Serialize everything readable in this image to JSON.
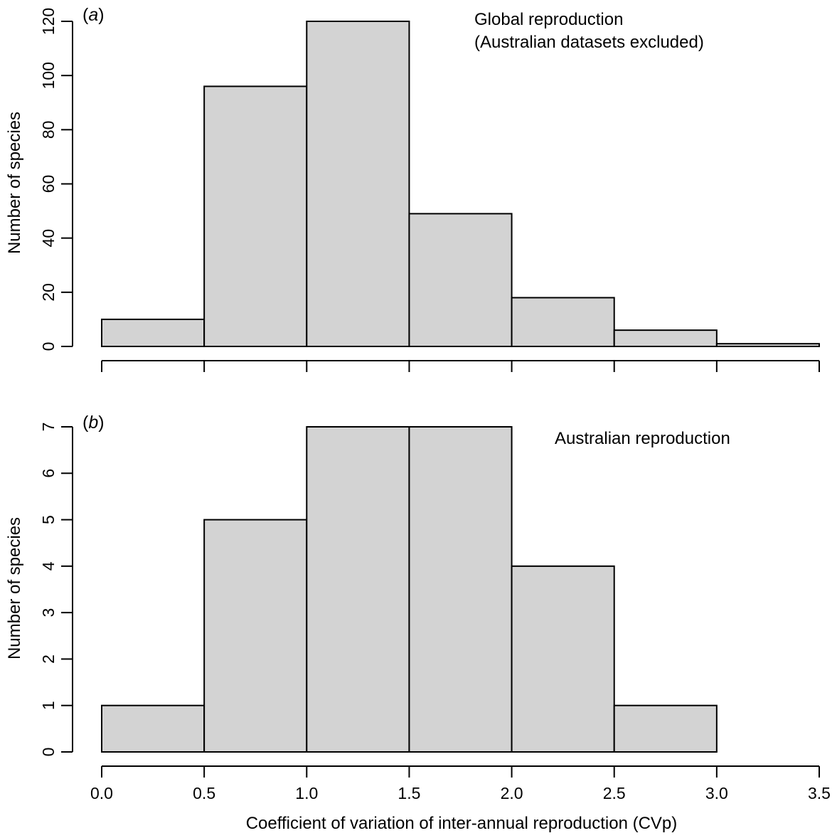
{
  "chart_data": [
    {
      "type": "bar",
      "panel_letter": "a",
      "title_lines": [
        "Global reproduction",
        "(Australian datasets excluded)"
      ],
      "ylabel": "Number of species",
      "xlabel": "",
      "bin_edges": [
        0.0,
        0.5,
        1.0,
        1.5,
        2.0,
        2.5,
        3.0,
        3.5
      ],
      "values": [
        10,
        96,
        120,
        49,
        18,
        6,
        1
      ],
      "xlim": [
        0,
        3.5
      ],
      "ylim": [
        0,
        120
      ],
      "yticks": [
        0,
        20,
        40,
        60,
        80,
        100,
        120
      ],
      "xticks": [
        0.0,
        0.5,
        1.0,
        1.5,
        2.0,
        2.5,
        3.0,
        3.5
      ],
      "xtick_labels": [],
      "grid": false
    },
    {
      "type": "bar",
      "panel_letter": "b",
      "title_lines": [
        "Australian reproduction"
      ],
      "ylabel": "Number of species",
      "xlabel": "Coefficient of variation of inter-annual reproduction (CVp)",
      "bin_edges": [
        0.0,
        0.5,
        1.0,
        1.5,
        2.0,
        2.5,
        3.0
      ],
      "values": [
        1,
        5,
        7,
        7,
        4,
        1
      ],
      "xlim": [
        0,
        3.5
      ],
      "ylim": [
        0,
        7
      ],
      "yticks": [
        0,
        1,
        2,
        3,
        4,
        5,
        6,
        7
      ],
      "xticks": [
        0.0,
        0.5,
        1.0,
        1.5,
        2.0,
        2.5,
        3.0,
        3.5
      ],
      "xtick_labels": [
        "0.0",
        "0.5",
        "1.0",
        "1.5",
        "2.0",
        "2.5",
        "3.0",
        "3.5"
      ],
      "grid": false
    }
  ]
}
